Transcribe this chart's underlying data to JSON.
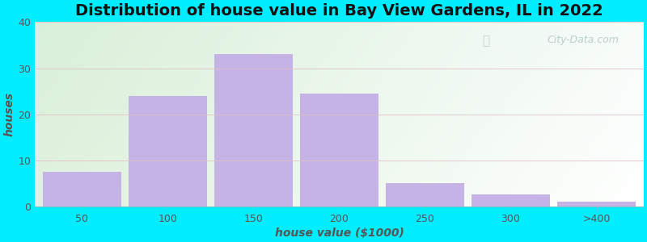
{
  "title": "Distribution of house value in Bay View Gardens, IL in 2022",
  "xlabel": "house value ($1000)",
  "ylabel": "houses",
  "bar_labels": [
    "50",
    "100",
    "150",
    "200",
    "250",
    "300",
    ">400"
  ],
  "bar_values": [
    7.5,
    24,
    33,
    24.5,
    5,
    2.5,
    1
  ],
  "bar_color": "#c5b3e6",
  "bar_edge_color": "#c5b3e6",
  "ylim": [
    0,
    40
  ],
  "yticks": [
    0,
    10,
    20,
    30,
    40
  ],
  "background_outer": "#00eeff",
  "title_fontsize": 14,
  "label_fontsize": 10,
  "tick_fontsize": 9,
  "watermark": "City-Data.com",
  "grid_color": "#e0c0c8",
  "text_color": "#555555"
}
